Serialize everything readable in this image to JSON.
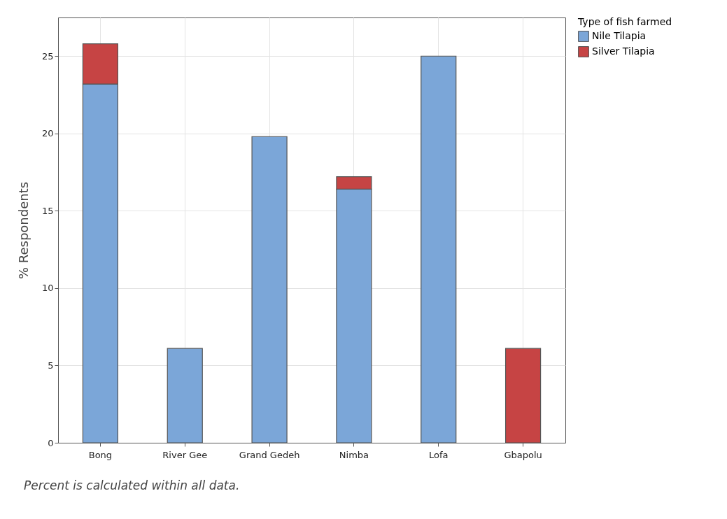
{
  "chart_data": {
    "type": "bar",
    "stacked": true,
    "ylabel": "% Respondents",
    "legend_title": "Type of fish farmed",
    "legend": "top right",
    "grid": true,
    "categories": [
      "Bong",
      "River Gee",
      "Grand Gedeh",
      "Nimba",
      "Lofa",
      "Gbapolu"
    ],
    "series": [
      {
        "name": "Nile Tilapia",
        "color": "#7ba6d8",
        "values": [
          23.2,
          6.1,
          19.8,
          16.4,
          25.0,
          null
        ]
      },
      {
        "name": "Silver Tilapia",
        "color": "#c64444",
        "values": [
          2.6,
          null,
          null,
          0.8,
          null,
          6.1
        ]
      }
    ],
    "ylim": [
      0,
      27.5
    ],
    "yticks": [
      0,
      5,
      10,
      15,
      20,
      25
    ],
    "annotations": [
      "Percent is calculated within all data."
    ]
  }
}
